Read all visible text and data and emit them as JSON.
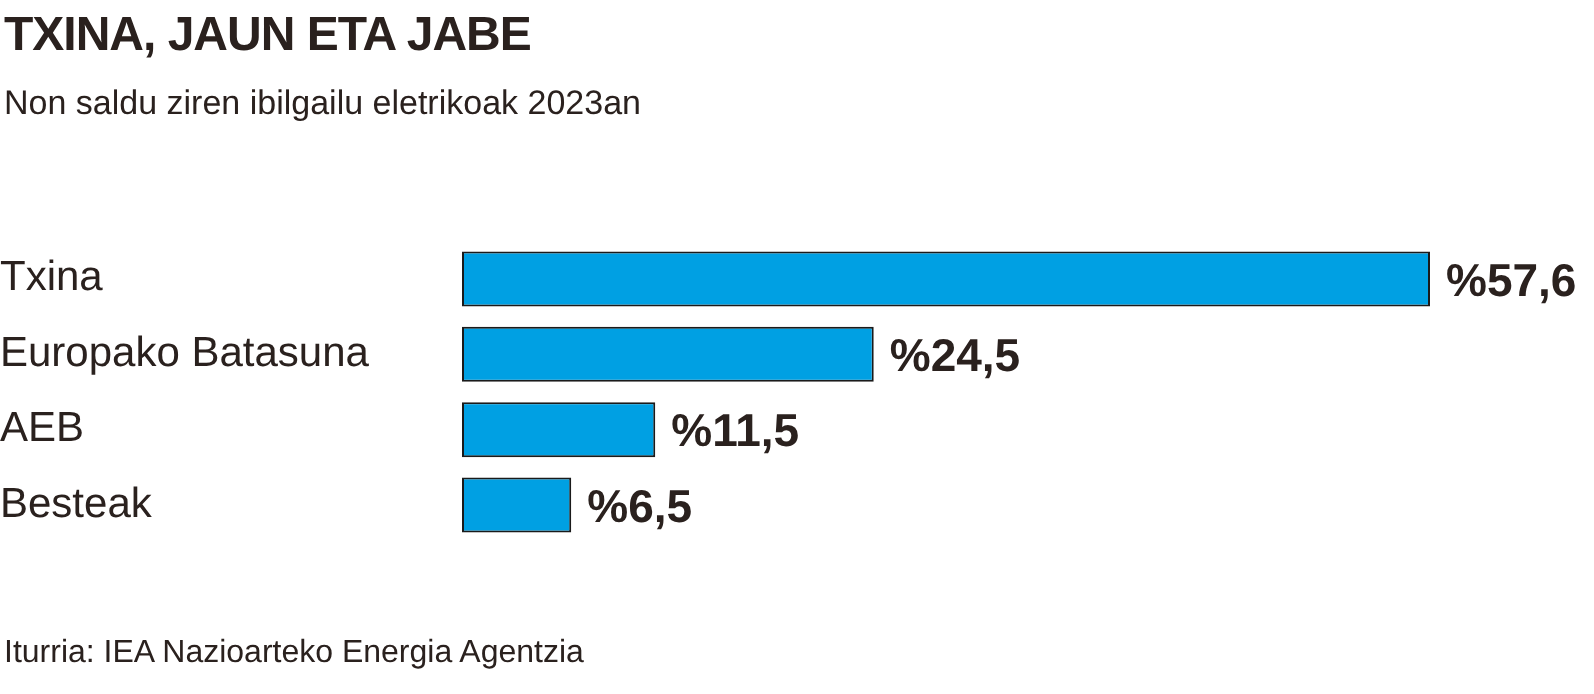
{
  "chart_data": {
    "type": "bar",
    "orientation": "horizontal",
    "title": "TXINA, JAUN ETA JABE",
    "subtitle": "Non saldu ziren ibilgailu eletrikoak 2023an",
    "categories": [
      "Txina",
      "Europako Batasuna",
      "AEB",
      "Besteak"
    ],
    "values": [
      57.6,
      24.5,
      11.5,
      6.5
    ],
    "value_labels": [
      "%57,6",
      "%24,5",
      "%11,5",
      "%6,5"
    ],
    "color": "#00a0e3",
    "annotations": [
      "Iturria: IEA Nazioarteko Energia Agentzia"
    ]
  }
}
